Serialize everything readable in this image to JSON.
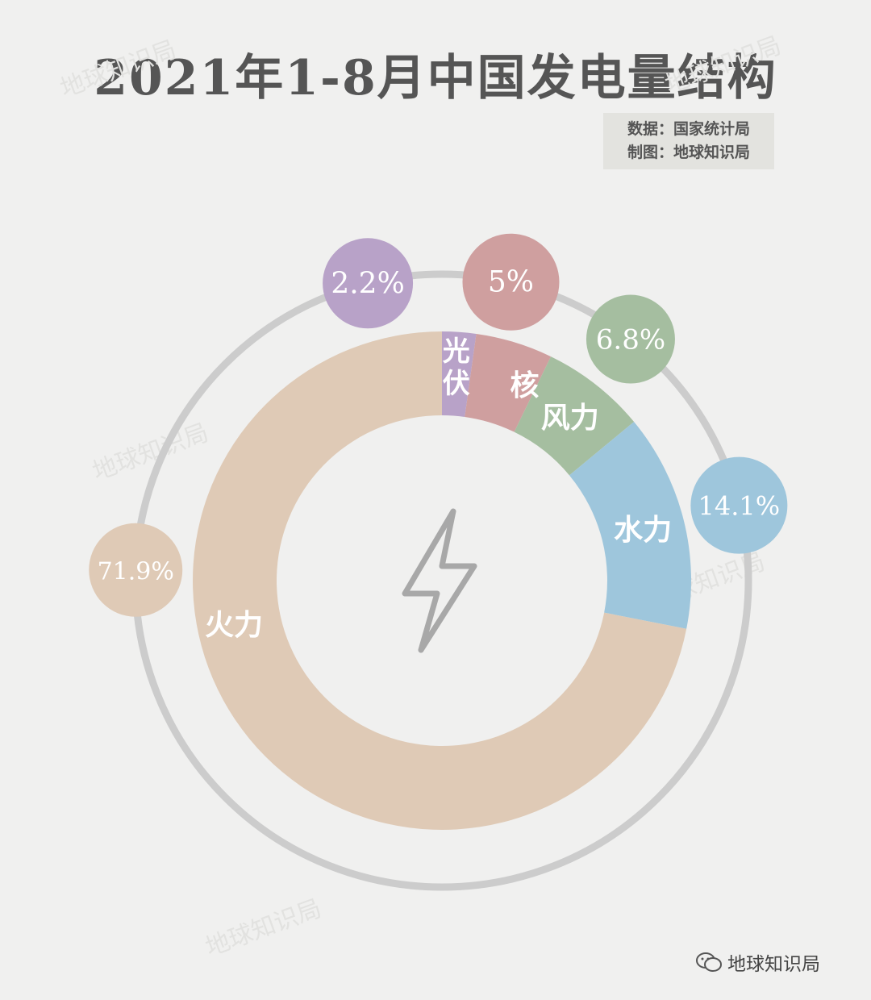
{
  "title": "2021年1-8月中国发电量结构",
  "source": {
    "line1": "数据：国家统计局",
    "line2": "制图：地球知识局"
  },
  "watermark": "地球知识局",
  "brand": "地球知识局",
  "center_icon": "lightning-bolt-icon",
  "colors": {
    "background": "#f0f0ef",
    "ring": "#cccccc",
    "photovoltaic": "#b8a2c8",
    "nuclear": "#cf9f9f",
    "wind": "#a5bea0",
    "hydro": "#9ec6dc",
    "thermal": "#dfcab6"
  },
  "chart_data": {
    "type": "pie",
    "title": "2021年1-8月中国发电量结构",
    "categories": [
      "光伏",
      "核",
      "风力",
      "水力",
      "火力"
    ],
    "values": [
      2.2,
      5,
      6.8,
      14.1,
      71.9
    ],
    "value_labels": [
      "2.2%",
      "5%",
      "6.8%",
      "14.1%",
      "71.9%"
    ],
    "unit": "%",
    "legend": "none"
  }
}
